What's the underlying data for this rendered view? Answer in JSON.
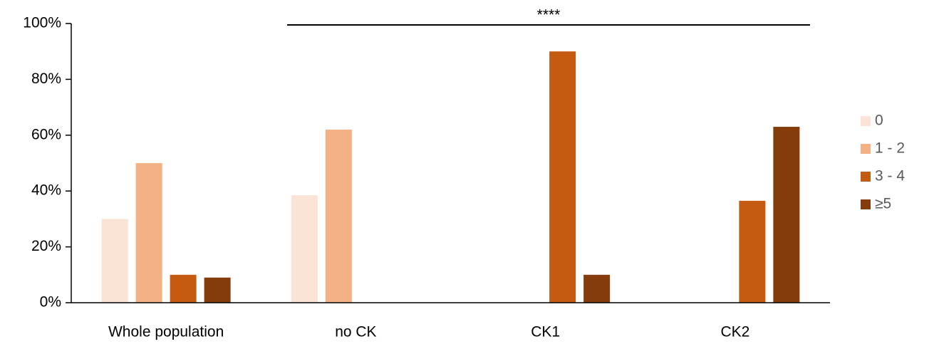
{
  "chart_data": {
    "type": "bar",
    "annotation": "****",
    "categories": [
      "Whole population",
      "no CK",
      "CK1",
      "CK2"
    ],
    "series": [
      {
        "name": "0",
        "color": "#fbe3d6",
        "values": [
          30,
          38.5,
          0,
          0
        ]
      },
      {
        "name": "1 - 2",
        "color": "#f3b185",
        "values": [
          50,
          62,
          0,
          0
        ]
      },
      {
        "name": "3 - 4",
        "color": "#c55a11",
        "values": [
          10,
          0,
          90,
          36.5
        ]
      },
      {
        "name": "≥5",
        "color": "#843c0c",
        "values": [
          9,
          0,
          10,
          63
        ]
      }
    ],
    "ylim": [
      0,
      100
    ],
    "yticks": [
      {
        "value": 0,
        "label": "0%"
      },
      {
        "value": 20,
        "label": "20%"
      },
      {
        "value": 40,
        "label": "40%"
      },
      {
        "value": 60,
        "label": "60%"
      },
      {
        "value": 80,
        "label": "80%"
      },
      {
        "value": 100,
        "label": "100%"
      }
    ],
    "grid": false,
    "legend": "right"
  }
}
